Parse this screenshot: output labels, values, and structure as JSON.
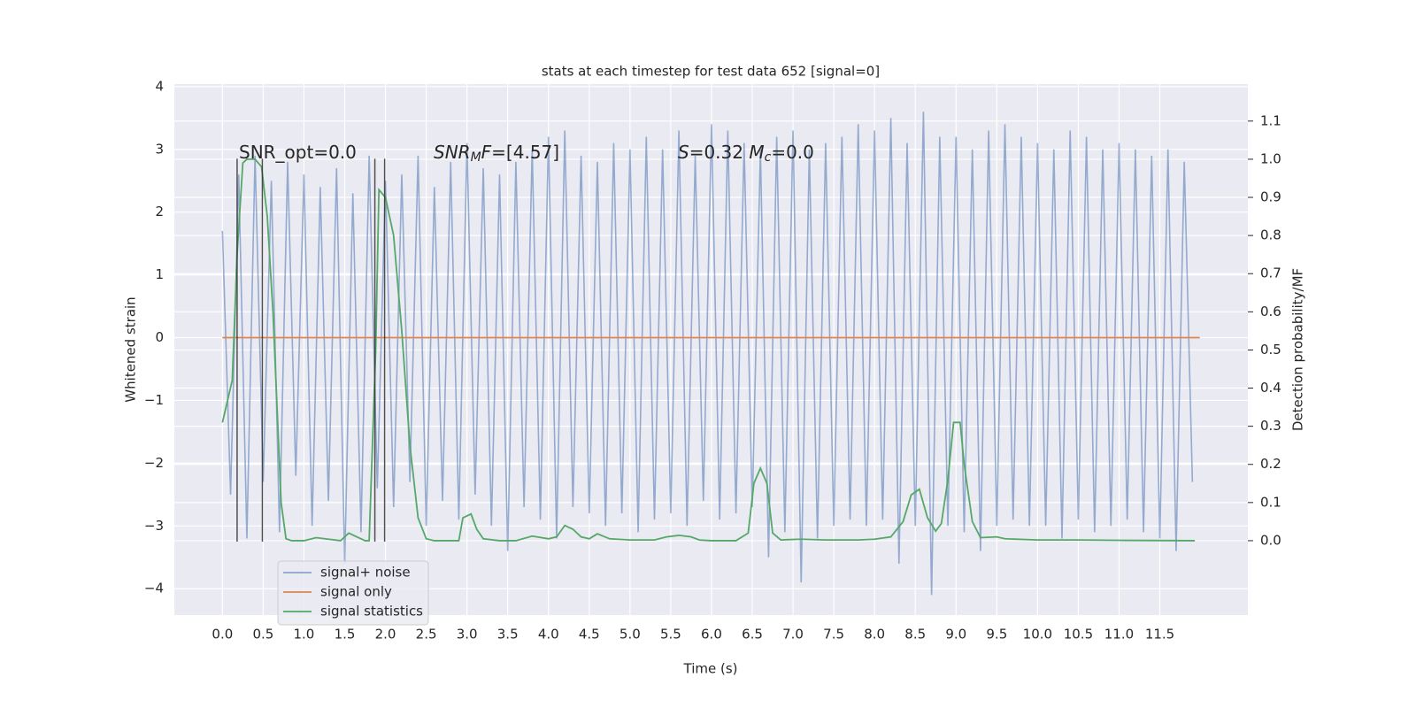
{
  "chart_data": {
    "type": "line",
    "title": "stats at each timestep for test data 652 [signal=0]",
    "xlabel": "Time (s)",
    "ylabel": "Whitened strain",
    "y2label": "Detection probability/MF",
    "grid": true,
    "legend": "lower left",
    "xlim": [
      -0.59,
      12.58
    ],
    "ylim": [
      -4.42,
      4.04
    ],
    "y2lim": [
      -0.195,
      1.197
    ],
    "xticks": [
      {
        "value": 0,
        "label": "0.0"
      },
      {
        "value": 0.5,
        "label": "0.5"
      },
      {
        "value": 1,
        "label": "1.0"
      },
      {
        "value": 1.5,
        "label": "1.5"
      },
      {
        "value": 2,
        "label": "2.0"
      },
      {
        "value": 2.5,
        "label": "2.5"
      },
      {
        "value": 3,
        "label": "3.0"
      },
      {
        "value": 3.5,
        "label": "3.5"
      },
      {
        "value": 4,
        "label": "4.0"
      },
      {
        "value": 4.5,
        "label": "4.5"
      },
      {
        "value": 5,
        "label": "5.0"
      },
      {
        "value": 5.5,
        "label": "5.5"
      },
      {
        "value": 6,
        "label": "6.0"
      },
      {
        "value": 6.5,
        "label": "6.5"
      },
      {
        "value": 7,
        "label": "7.0"
      },
      {
        "value": 7.5,
        "label": "7.5"
      },
      {
        "value": 8,
        "label": "8.0"
      },
      {
        "value": 8.5,
        "label": "8.5"
      },
      {
        "value": 9,
        "label": "9.0"
      },
      {
        "value": 9.5,
        "label": "9.5"
      },
      {
        "value": 10,
        "label": "10.0"
      },
      {
        "value": 10.5,
        "label": "10.5"
      },
      {
        "value": 11,
        "label": "11.0"
      },
      {
        "value": 11.5,
        "label": "11.5"
      }
    ],
    "yticks": [
      {
        "value": -4,
        "label": "−4"
      },
      {
        "value": -3,
        "label": "−3"
      },
      {
        "value": -2,
        "label": "−2"
      },
      {
        "value": -1,
        "label": "−1"
      },
      0,
      1,
      2,
      3,
      4
    ],
    "y2ticks": [
      {
        "value": 0,
        "label": "0.0"
      },
      {
        "value": 0.1,
        "label": "0.1"
      },
      {
        "value": 0.2,
        "label": "0.2"
      },
      {
        "value": 0.3,
        "label": "0.3"
      },
      {
        "value": 0.4,
        "label": "0.4"
      },
      {
        "value": 0.5,
        "label": "0.5"
      },
      {
        "value": 0.6,
        "label": "0.6"
      },
      {
        "value": 0.7,
        "label": "0.7"
      },
      {
        "value": 0.8,
        "label": "0.8"
      },
      {
        "value": 0.9,
        "label": "0.9"
      },
      {
        "value": 1.0,
        "label": "1.0"
      },
      {
        "value": 1.1,
        "label": "1.1"
      }
    ],
    "series": [
      {
        "name": "signal+ noise",
        "color": "#4c72b0",
        "x": [
          0,
          0.1,
          0.2,
          0.3,
          0.4,
          0.5,
          0.6,
          0.7,
          0.8,
          0.9,
          1,
          1.1,
          1.2,
          1.3,
          1.4,
          1.5,
          1.6,
          1.7,
          1.8,
          1.9,
          2,
          2.1,
          2.2,
          2.3,
          2.4,
          2.5,
          2.6,
          2.7,
          2.8,
          2.9,
          3,
          3.1,
          3.2,
          3.3,
          3.4,
          3.5,
          3.6,
          3.7,
          3.8,
          3.9,
          4,
          4.1,
          4.2,
          4.3,
          4.4,
          4.5,
          4.6,
          4.7,
          4.8,
          4.9,
          5,
          5.1,
          5.2,
          5.3,
          5.4,
          5.5,
          5.6,
          5.7,
          5.8,
          5.9,
          6,
          6.1,
          6.2,
          6.3,
          6.4,
          6.5,
          6.6,
          6.7,
          6.8,
          6.9,
          7,
          7.1,
          7.2,
          7.3,
          7.4,
          7.5,
          7.6,
          7.7,
          7.8,
          7.9,
          8,
          8.1,
          8.2,
          8.3,
          8.4,
          8.5,
          8.6,
          8.7,
          8.8,
          8.9,
          9,
          9.1,
          9.2,
          9.3,
          9.4,
          9.5,
          9.6,
          9.7,
          9.8,
          9.9,
          10,
          10.1,
          10.2,
          10.3,
          10.4,
          10.5,
          10.6,
          10.7,
          10.8,
          10.9,
          11,
          11.1,
          11.2,
          11.3,
          11.4,
          11.5,
          11.6,
          11.7,
          11.8,
          11.9
        ],
        "values": [
          1.7,
          -2.5,
          2.6,
          -3.2,
          2.9,
          -2.3,
          2.5,
          -3.1,
          2.8,
          -2.2,
          2.6,
          -3.0,
          2.4,
          -2.6,
          2.7,
          -3.6,
          2.3,
          -3.1,
          2.9,
          -2.4,
          2.5,
          -2.7,
          2.6,
          -2.3,
          2.9,
          -3.0,
          2.4,
          -2.6,
          2.8,
          -2.9,
          3.1,
          -2.5,
          2.7,
          -3.0,
          2.6,
          -3.4,
          2.8,
          -2.7,
          3.0,
          -2.9,
          3.2,
          -3.2,
          3.3,
          -2.7,
          2.9,
          -2.8,
          2.8,
          -3.0,
          3.1,
          -2.8,
          3.0,
          -3.1,
          3.2,
          -2.9,
          3.0,
          -2.8,
          3.3,
          -3.0,
          2.9,
          -2.6,
          3.4,
          -2.9,
          3.3,
          -2.8,
          3.1,
          -2.7,
          3.0,
          -3.5,
          3.2,
          -3.1,
          3.3,
          -3.9,
          3.0,
          -3.2,
          3.1,
          -3.0,
          3.2,
          -2.9,
          3.4,
          -3.0,
          3.3,
          -2.9,
          3.5,
          -3.6,
          3.1,
          -3.0,
          3.6,
          -4.1,
          3.2,
          -3.0,
          3.2,
          -3.1,
          3.0,
          -3.4,
          3.3,
          -3.0,
          3.4,
          -2.9,
          3.2,
          -3.0,
          3.1,
          -3.0,
          3.0,
          -3.2,
          3.3,
          -2.9,
          3.2,
          -3.1,
          3.0,
          -3.0,
          3.1,
          -2.9,
          3.0,
          -3.1,
          2.9,
          -3.2,
          3.0,
          -3.4,
          2.8,
          -2.3
        ]
      },
      {
        "name": "signal only",
        "color": "#dd8452",
        "x": [
          0,
          11.99
        ],
        "values": [
          0,
          0
        ]
      },
      {
        "name": "signal statistics",
        "color": "#55a868",
        "axis": "y2",
        "x": [
          0,
          0.12,
          0.18,
          0.25,
          0.3,
          0.4,
          0.48,
          0.55,
          0.62,
          0.68,
          0.72,
          0.78,
          0.85,
          1,
          1.15,
          1.3,
          1.45,
          1.55,
          1.65,
          1.75,
          1.8,
          1.88,
          1.92,
          2,
          2.1,
          2.2,
          2.3,
          2.4,
          2.5,
          2.6,
          2.9,
          2.95,
          3.05,
          3.12,
          3.2,
          3.4,
          3.6,
          3.8,
          4,
          4.1,
          4.2,
          4.3,
          4.4,
          4.5,
          4.6,
          4.75,
          5,
          5.3,
          5.45,
          5.6,
          5.75,
          5.85,
          6,
          6.3,
          6.45,
          6.52,
          6.6,
          6.68,
          6.75,
          6.85,
          7.1,
          7.4,
          7.8,
          8,
          8.2,
          8.35,
          8.45,
          8.55,
          8.65,
          8.75,
          8.82,
          8.9,
          8.97,
          9.05,
          9.1,
          9.2,
          9.3,
          9.5,
          9.6,
          10,
          10.5,
          11,
          11.93
        ],
        "values": [
          0.31,
          0.42,
          0.75,
          0.99,
          1.0,
          1.0,
          0.98,
          0.85,
          0.6,
          0.3,
          0.1,
          0.005,
          0.0,
          0.0,
          0.008,
          0.004,
          0.0,
          0.02,
          0.01,
          0.0,
          0.0,
          0.5,
          0.92,
          0.9,
          0.8,
          0.55,
          0.25,
          0.06,
          0.005,
          0.0,
          0.0,
          0.06,
          0.07,
          0.03,
          0.005,
          0.0,
          0.0,
          0.012,
          0.005,
          0.01,
          0.04,
          0.03,
          0.01,
          0.005,
          0.018,
          0.005,
          0.002,
          0.002,
          0.01,
          0.014,
          0.01,
          0.002,
          0.0,
          0.0,
          0.02,
          0.15,
          0.19,
          0.15,
          0.02,
          0.002,
          0.004,
          0.002,
          0.002,
          0.004,
          0.01,
          0.05,
          0.12,
          0.135,
          0.06,
          0.025,
          0.045,
          0.16,
          0.31,
          0.31,
          0.2,
          0.05,
          0.008,
          0.01,
          0.005,
          0.002,
          0.002,
          0.001,
          0.0
        ]
      }
    ],
    "vlines": {
      "color": "#333333",
      "x": [
        0.18,
        0.49,
        1.87,
        1.99
      ],
      "ymin": -3.25,
      "ymax": 2.85
    },
    "annotations": [
      [
        {
          "text": "SNR_opt=0.0"
        }
      ],
      [
        {
          "text": "SNR",
          "italic": true
        },
        {
          "text": "M",
          "italic": true,
          "sub": true
        },
        {
          "text": "F",
          "italic": true
        },
        {
          "text": "=[4.57]"
        }
      ],
      [
        {
          "text": "S",
          "italic": true
        },
        {
          "text": "=0.32   "
        },
        {
          "text": "M",
          "italic": true
        },
        {
          "text": "c",
          "italic": true,
          "sub": true
        },
        {
          "text": "=0.0"
        }
      ]
    ]
  }
}
